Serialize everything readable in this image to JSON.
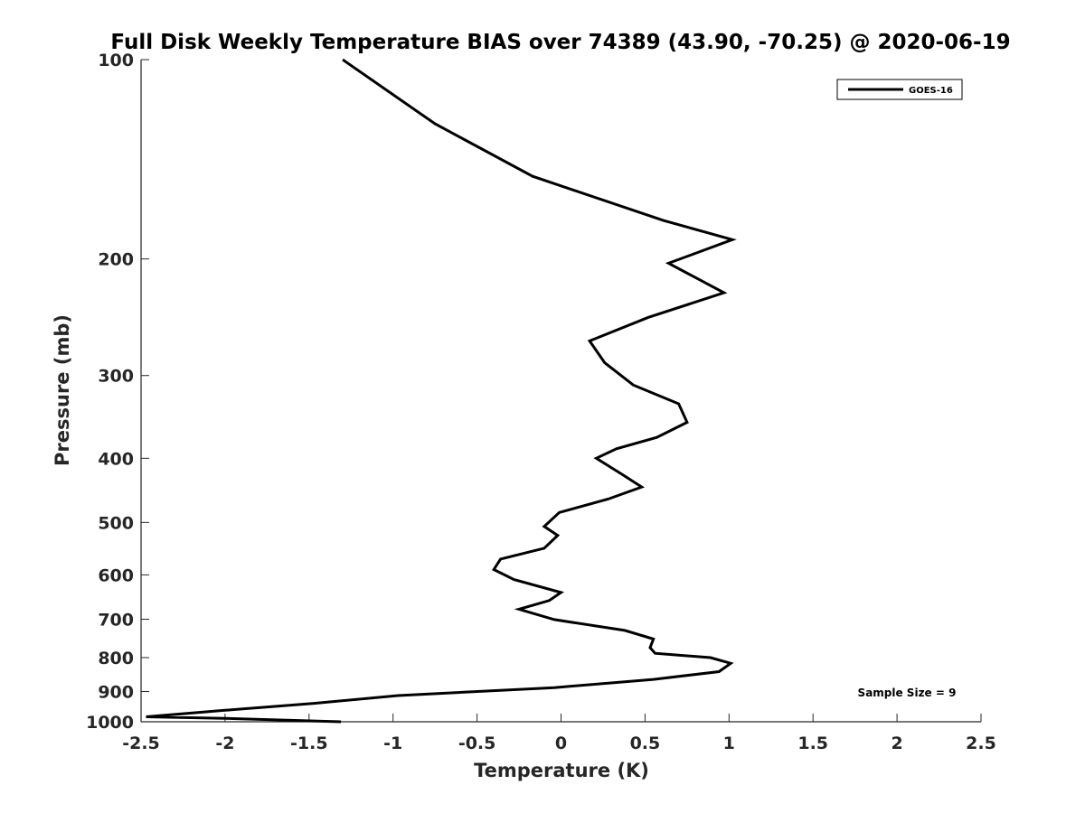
{
  "chart_data": {
    "type": "line",
    "title": "Full Disk Weekly Temperature BIAS over 74389 (43.90, -70.25) @ 2020-06-19",
    "xlabel": "Temperature (K)",
    "ylabel": "Pressure (mb)",
    "xlim": [
      -2.5,
      2.5
    ],
    "ylim": [
      100,
      1000
    ],
    "y_scale": "log",
    "y_reversed": true,
    "x_ticks": [
      "-2.5",
      "-2",
      "-1.5",
      "-1",
      "-0.5",
      "0",
      "0.5",
      "1",
      "1.5",
      "2",
      "2.5"
    ],
    "x_tick_values": [
      -2.5,
      -2,
      -1.5,
      -1,
      -0.5,
      0,
      0.5,
      1,
      1.5,
      2,
      2.5
    ],
    "y_ticks": [
      "100",
      "200",
      "300",
      "400",
      "500",
      "600",
      "700",
      "800",
      "900",
      "1000"
    ],
    "y_tick_values": [
      100,
      200,
      300,
      400,
      500,
      600,
      700,
      800,
      900,
      1000
    ],
    "grid": false,
    "legend_position": "top-right",
    "series": [
      {
        "name": "GOES-16",
        "color": "#000000",
        "points": [
          [
            -1.3,
            100
          ],
          [
            -0.75,
            125
          ],
          [
            -0.17,
            150
          ],
          [
            0.61,
            175
          ],
          [
            1.02,
            187
          ],
          [
            0.64,
            203
          ],
          [
            0.97,
            225
          ],
          [
            0.52,
            245
          ],
          [
            0.17,
            266
          ],
          [
            0.26,
            287
          ],
          [
            0.43,
            310
          ],
          [
            0.7,
            331
          ],
          [
            0.75,
            353
          ],
          [
            0.57,
            372
          ],
          [
            0.33,
            387
          ],
          [
            0.21,
            400
          ],
          [
            0.37,
            424
          ],
          [
            0.48,
            442
          ],
          [
            0.28,
            461
          ],
          [
            -0.01,
            483
          ],
          [
            -0.1,
            507
          ],
          [
            -0.02,
            523
          ],
          [
            -0.1,
            547
          ],
          [
            -0.36,
            568
          ],
          [
            -0.4,
            589
          ],
          [
            -0.28,
            610
          ],
          [
            0.0,
            638
          ],
          [
            -0.07,
            656
          ],
          [
            -0.25,
            676
          ],
          [
            -0.04,
            701
          ],
          [
            0.38,
            728
          ],
          [
            0.55,
            750
          ],
          [
            0.53,
            773
          ],
          [
            0.56,
            788
          ],
          [
            0.89,
            800
          ],
          [
            1.01,
            816
          ],
          [
            0.94,
            840
          ],
          [
            0.55,
            863
          ],
          [
            -0.04,
            888
          ],
          [
            -0.97,
            913
          ],
          [
            -1.47,
            938
          ],
          [
            -2.0,
            961
          ],
          [
            -2.47,
            983
          ],
          [
            -2.0,
            988
          ],
          [
            -1.31,
            1000
          ]
        ]
      }
    ],
    "annotations": [
      "Sample Size = 9"
    ]
  }
}
